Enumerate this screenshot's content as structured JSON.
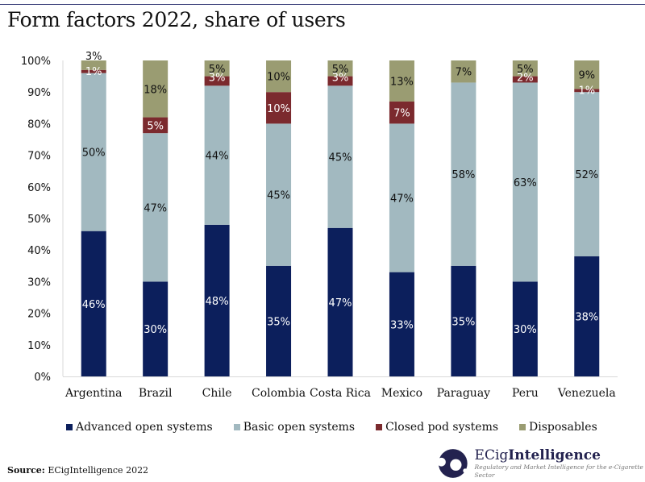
{
  "title": "Form factors 2022, share of users",
  "source": {
    "label": "Source:",
    "text": "ECigIntelligence 2022"
  },
  "logo": {
    "name_regular": "ECig",
    "name_bold": "Intelligence",
    "tagline": "Regulatory and Market Intelligence for the e-Cigarette Sector"
  },
  "chart_data": {
    "type": "bar",
    "stacked": true,
    "percent": true,
    "title": "Form factors 2022, share of users",
    "xlabel": "",
    "ylabel": "",
    "ylim": [
      0,
      100
    ],
    "yticks": [
      "0%",
      "10%",
      "20%",
      "30%",
      "40%",
      "50%",
      "60%",
      "70%",
      "80%",
      "90%",
      "100%"
    ],
    "grid": false,
    "legend_position": "bottom",
    "categories": [
      "Argentina",
      "Brazil",
      "Chile",
      "Colombia",
      "Costa Rica",
      "Mexico",
      "Paraguay",
      "Peru",
      "Venezuela"
    ],
    "series": [
      {
        "name": "Advanced open systems",
        "color": "#0c1f5c",
        "label_color": "#ffffff",
        "values": [
          46,
          30,
          48,
          35,
          47,
          33,
          35,
          30,
          38
        ]
      },
      {
        "name": "Basic open systems",
        "color": "#a2b9c0",
        "label_color": "#111111",
        "values": [
          50,
          47,
          44,
          45,
          45,
          47,
          58,
          63,
          52
        ]
      },
      {
        "name": "Closed pod systems",
        "color": "#7b2a2e",
        "label_color": "#ffffff",
        "values": [
          1,
          5,
          3,
          10,
          3,
          7,
          0,
          2,
          1
        ]
      },
      {
        "name": "Disposables",
        "color": "#9a9c72",
        "label_color": "#111111",
        "values": [
          3,
          18,
          5,
          10,
          5,
          13,
          7,
          5,
          9
        ]
      }
    ]
  }
}
